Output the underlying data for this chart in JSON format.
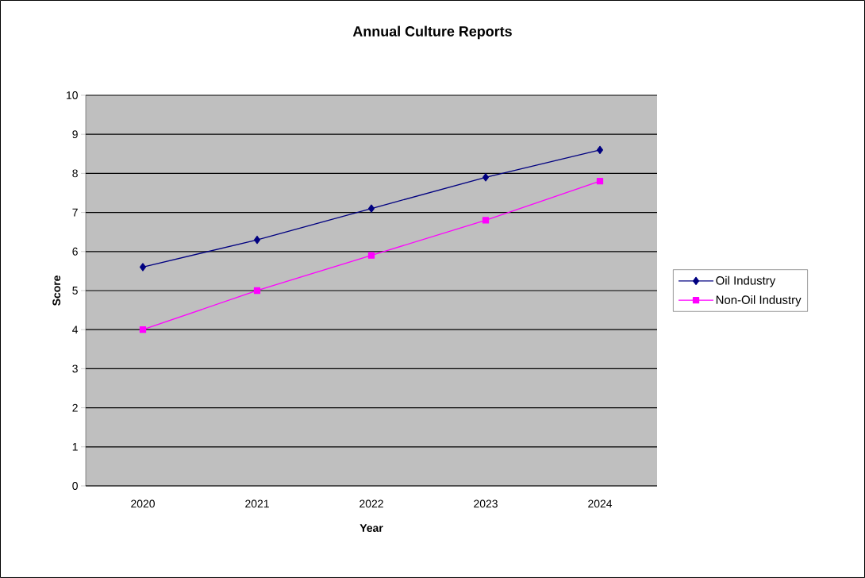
{
  "chart_data": {
    "type": "line",
    "title": "Annual Culture Reports",
    "xlabel": "Year",
    "ylabel": "Score",
    "categories": [
      "2020",
      "2021",
      "2022",
      "2023",
      "2024"
    ],
    "series": [
      {
        "name": "Oil Industry",
        "color": "#000080",
        "marker": "diamond",
        "values": [
          5.6,
          6.3,
          7.1,
          7.9,
          8.6
        ]
      },
      {
        "name": "Non-Oil Industry",
        "color": "#ff00ff",
        "marker": "square",
        "values": [
          4.0,
          5.0,
          5.9,
          6.8,
          7.8
        ]
      }
    ],
    "ylim": [
      0,
      10
    ],
    "yticks": [
      0,
      1,
      2,
      3,
      4,
      5,
      6,
      7,
      8,
      9,
      10
    ],
    "grid": "y",
    "legend": "right"
  }
}
